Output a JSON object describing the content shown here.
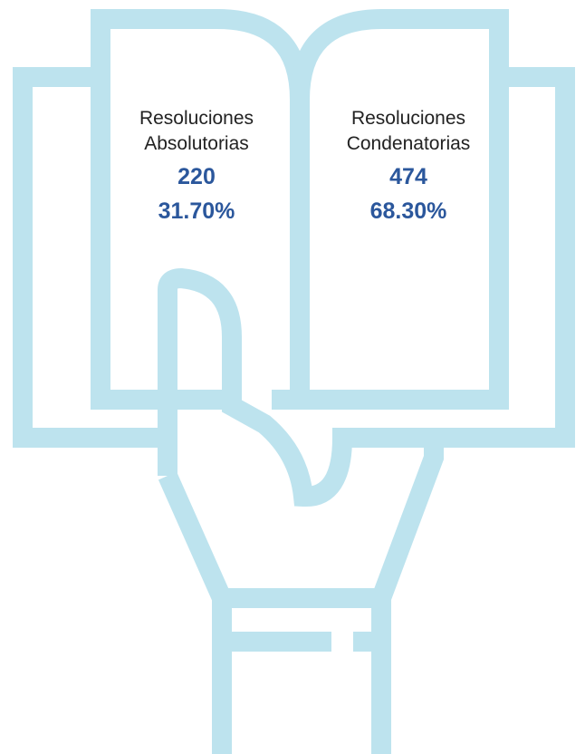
{
  "panels": [
    {
      "label_lines": [
        "Resoluciones",
        "Absolutorias"
      ],
      "count": 220,
      "percent": "31.70%"
    },
    {
      "label_lines": [
        "Resoluciones",
        "Condenatorias"
      ],
      "count": 474,
      "percent": "68.30%"
    }
  ]
}
